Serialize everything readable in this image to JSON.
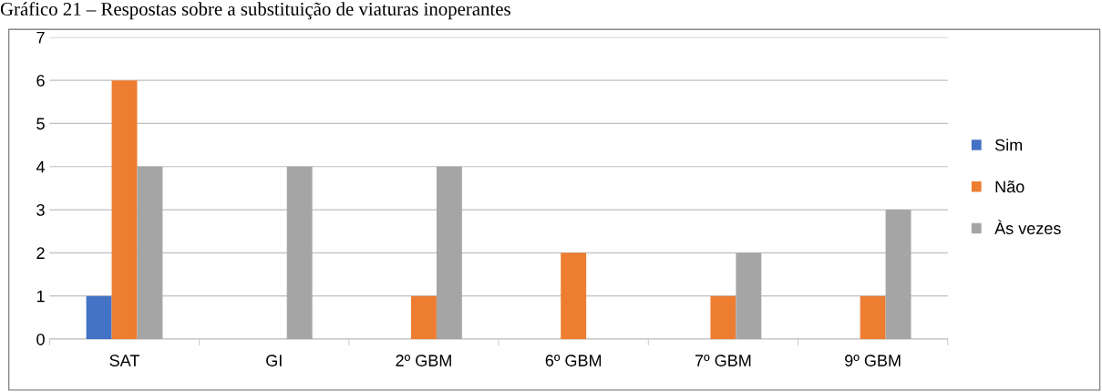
{
  "chart_data": {
    "type": "bar",
    "title": "Gráfico 21 – Respostas sobre a substituição de viaturas inoperantes",
    "categories": [
      "SAT",
      "GI",
      "2º GBM",
      "6º GBM",
      "7º GBM",
      "9º GBM"
    ],
    "series": [
      {
        "name": "Sim",
        "color": "#4472c4",
        "values": [
          1,
          0,
          0,
          0,
          0,
          0
        ]
      },
      {
        "name": "Não",
        "color": "#ed7d31",
        "values": [
          6,
          0,
          1,
          2,
          1,
          1
        ]
      },
      {
        "name": "Às vezes",
        "color": "#a5a5a5",
        "values": [
          4,
          4,
          4,
          0,
          2,
          3
        ]
      }
    ],
    "ylim": [
      0,
      7
    ],
    "yticks": [
      0,
      1,
      2,
      3,
      4,
      5,
      6,
      7
    ],
    "grid": "y",
    "legend": "right"
  }
}
